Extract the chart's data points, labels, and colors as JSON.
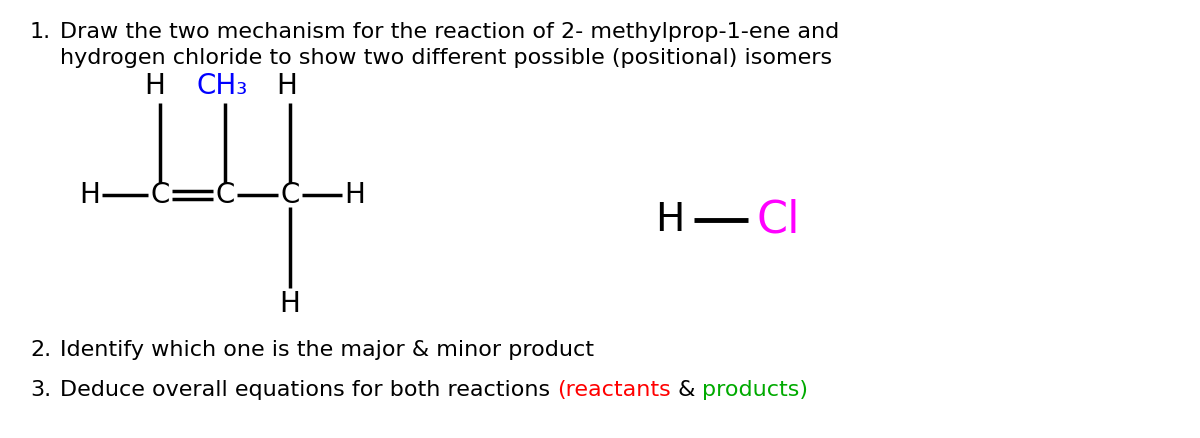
{
  "background_color": "#ffffff",
  "title_line1": "Draw the two mechanism for the reaction of 2- methylprop-1-ene and",
  "title_line2": "hydrogen chloride to show two different possible (positional) isomers",
  "title_number": "1.",
  "item2_number": "2.",
  "item2_text": "Identify which one is the major & minor product",
  "item3_number": "3.",
  "item3_text_black1": "Deduce overall equations for both reactions ",
  "item3_text_red": "(reactants",
  "item3_text_black2": " & ",
  "item3_text_green": "products)",
  "font_size_title": 16,
  "font_size_items": 16,
  "font_size_mol": 18,
  "color_black": "#000000",
  "color_blue": "#0000ff",
  "color_magenta": "#ff00ff",
  "color_red": "#ff0000",
  "color_green": "#00aa00"
}
